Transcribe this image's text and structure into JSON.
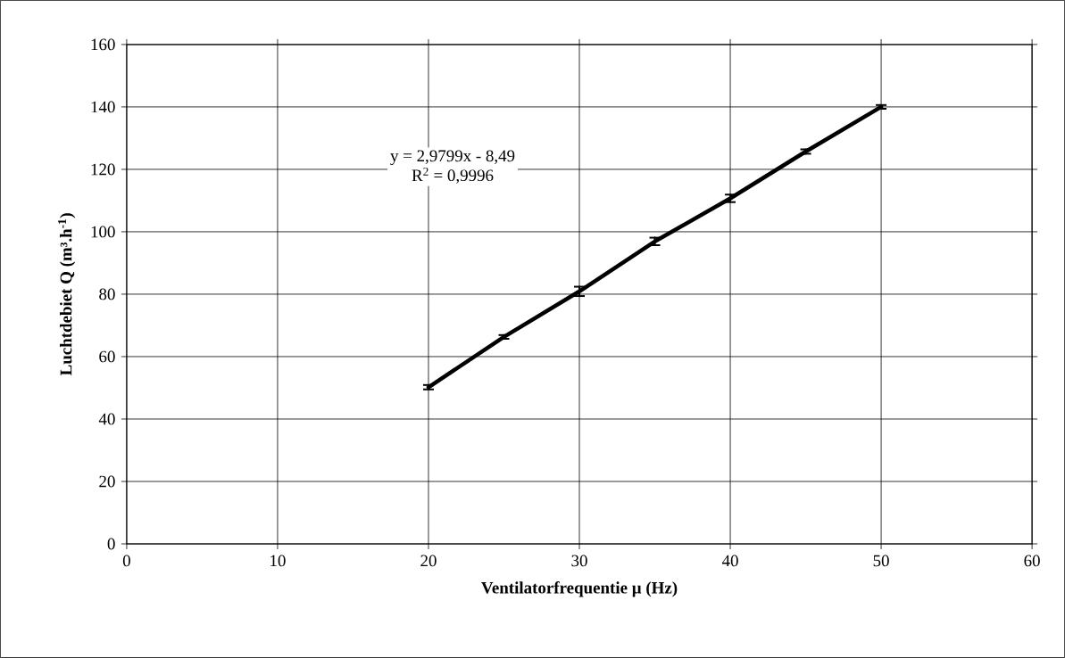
{
  "chart_data": {
    "type": "line",
    "xlabel": "Ventilatorfrequentie µ (Hz)",
    "ylabel": "Luchtdebiet Q (m³.h$^{-1}$)",
    "x": [
      20,
      25,
      30,
      35,
      40,
      45,
      50
    ],
    "series": [
      {
        "color": "#000000",
        "values": [
          50.2,
          66.3,
          80.9,
          96.9,
          110.7,
          125.7,
          140.0
        ],
        "errors": [
          0.7,
          0.6,
          1.5,
          1.2,
          1.2,
          0.7,
          0.6
        ]
      }
    ],
    "xlim": [
      0,
      60
    ],
    "xticks": [
      0,
      10,
      20,
      30,
      40,
      50,
      60
    ],
    "ylim": [
      0,
      160
    ],
    "yticks": [
      0,
      20,
      40,
      60,
      80,
      100,
      120,
      140,
      160
    ],
    "grid": true,
    "marker": "none",
    "line_style": "solid",
    "annotations": [
      "y = 2,9799x - 8,49",
      "R$^{2}$ = 0,9996"
    ]
  }
}
